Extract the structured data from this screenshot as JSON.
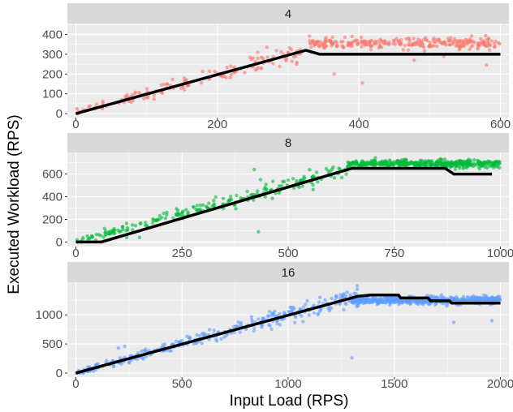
{
  "chart_data": {
    "type": "scatter",
    "xlabel": "Input Load (RPS)",
    "ylabel": "Executed Workload (RPS)",
    "grid": true,
    "panels": [
      {
        "strip_label": "4",
        "point_color": "#f8766d",
        "xlim": [
          -12,
          612
        ],
        "ylim": [
          -20,
          455
        ],
        "x_ticks": [
          0,
          200,
          400,
          600
        ],
        "y_ticks": [
          0,
          100,
          200,
          300,
          400
        ],
        "fit_line": [
          [
            0,
            0
          ],
          [
            325,
            320
          ],
          [
            345,
            300
          ],
          [
            600,
            300
          ]
        ],
        "scatter": {
          "linear_end": 320,
          "plateau_start": 330,
          "plateau_end": 600,
          "plateau_mean": 355,
          "plateau_spread": 22,
          "count": 420
        },
        "outliers": [
          [
            257,
            310
          ],
          [
            270,
            335
          ],
          [
            300,
            310
          ],
          [
            312,
            250
          ],
          [
            365,
            200
          ],
          [
            405,
            155
          ],
          [
            478,
            270
          ],
          [
            580,
            245
          ],
          [
            520,
            290
          ]
        ]
      },
      {
        "strip_label": "8",
        "point_color": "#00ba38",
        "xlim": [
          -20,
          1020
        ],
        "ylim": [
          -40,
          790
        ],
        "x_ticks": [
          0,
          250,
          500,
          750,
          1000
        ],
        "y_ticks": [
          0,
          200,
          400,
          600
        ],
        "fit_line": [
          [
            0,
            0
          ],
          [
            60,
            0
          ],
          [
            650,
            650
          ],
          [
            870,
            650
          ],
          [
            890,
            600
          ],
          [
            980,
            600
          ]
        ],
        "scatter": {
          "linear_end": 640,
          "plateau_start": 640,
          "plateau_end": 1000,
          "plateau_mean": 690,
          "plateau_spread": 28,
          "count": 650
        },
        "outliers": [
          [
            430,
            90
          ],
          [
            150,
            40
          ],
          [
            120,
            40
          ],
          [
            435,
            550
          ],
          [
            500,
            545
          ],
          [
            420,
            640
          ]
        ]
      },
      {
        "strip_label": "16",
        "point_color": "#619cff",
        "xlim": [
          -40,
          2040
        ],
        "ylim": [
          -70,
          1560
        ],
        "x_ticks": [
          0,
          500,
          1000,
          1500,
          2000
        ],
        "y_ticks": [
          0,
          500,
          1000
        ],
        "fit_line": [
          [
            0,
            0
          ],
          [
            1330,
            1320
          ],
          [
            1390,
            1340
          ],
          [
            1520,
            1340
          ],
          [
            1530,
            1290
          ],
          [
            1660,
            1290
          ],
          [
            1670,
            1240
          ],
          [
            1760,
            1240
          ],
          [
            1770,
            1200
          ],
          [
            2000,
            1200
          ]
        ],
        "scatter": {
          "linear_end": 1330,
          "plateau_start": 1300,
          "plateau_end": 2000,
          "plateau_mean": 1250,
          "plateau_spread": 55,
          "count": 900
        },
        "outliers": [
          [
            1300,
            260
          ],
          [
            1780,
            870
          ],
          [
            1960,
            900
          ],
          [
            200,
            430
          ],
          [
            230,
            460
          ],
          [
            1420,
            1180
          ],
          [
            1150,
            1300
          ]
        ]
      }
    ]
  }
}
